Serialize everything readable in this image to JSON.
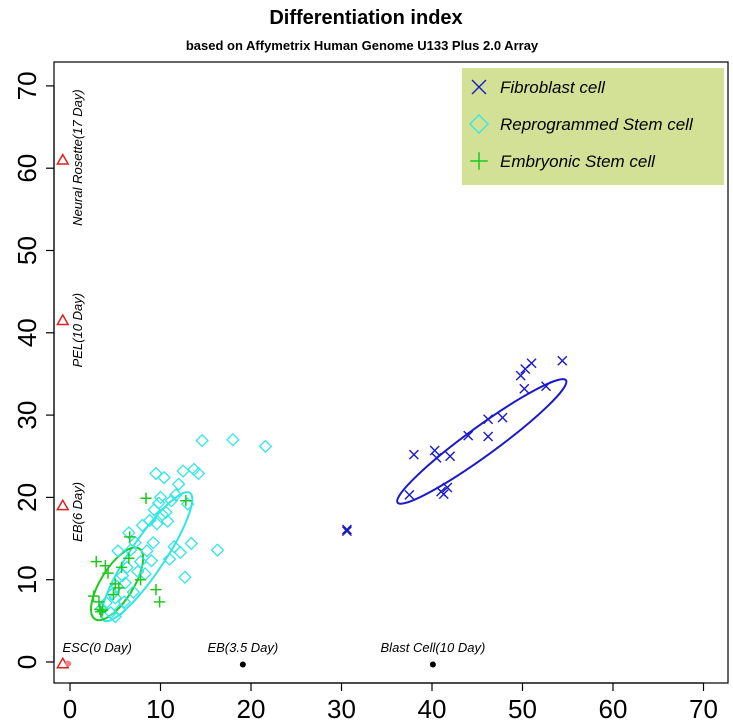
{
  "chart_data": {
    "type": "scatter",
    "title": "Differentiation index",
    "subtitle": "based on Affymetrix Human Genome U133 Plus 2.0 Array",
    "xlabel": "",
    "ylabel": "",
    "xlim": [
      -2,
      70
    ],
    "ylim": [
      -1,
      72
    ],
    "xticks": [
      0,
      10,
      20,
      30,
      40,
      50,
      60,
      70
    ],
    "yticks": [
      0,
      10,
      20,
      30,
      40,
      50,
      60,
      70
    ],
    "legend_position": "top-right",
    "series": [
      {
        "name": "Fibroblast cell",
        "marker": "x",
        "color": "#1a1ac8",
        "points": [
          [
            37.5,
            20.3
          ],
          [
            38,
            25.2
          ],
          [
            40.3,
            25.7
          ],
          [
            40.5,
            24.8
          ],
          [
            41,
            20.7
          ],
          [
            41.3,
            20.4
          ],
          [
            41.7,
            21.2
          ],
          [
            42,
            25
          ],
          [
            44,
            27.5
          ],
          [
            46.2,
            29.5
          ],
          [
            46.2,
            27.4
          ],
          [
            47.8,
            29.7
          ],
          [
            49.8,
            34.8
          ],
          [
            50.2,
            33.2
          ],
          [
            50.3,
            35.6
          ],
          [
            51,
            36.3
          ],
          [
            52.6,
            33.5
          ],
          [
            54.4,
            36.6
          ],
          [
            30.6,
            15.9
          ],
          [
            30.6,
            16.1
          ]
        ],
        "ellipse": {
          "cx": 45.5,
          "cy": 26.8,
          "rx": 11.5,
          "ry": 1.6,
          "angle_deg": 36
        }
      },
      {
        "name": "Reprogrammed Stem cell",
        "marker": "diamond",
        "color": "#33e6e6",
        "points": [
          [
            3.5,
            6.5
          ],
          [
            4,
            7.2
          ],
          [
            4.5,
            6
          ],
          [
            5,
            5.5
          ],
          [
            5,
            7.8
          ],
          [
            5.2,
            9.2
          ],
          [
            5.5,
            6.3
          ],
          [
            5.8,
            10.5
          ],
          [
            6,
            7.3
          ],
          [
            6.3,
            11.5
          ],
          [
            6.7,
            13.6
          ],
          [
            7,
            8.5
          ],
          [
            7.2,
            14.5
          ],
          [
            7.5,
            11
          ],
          [
            8,
            16.6
          ],
          [
            8.3,
            10.7
          ],
          [
            8.5,
            13.5
          ],
          [
            8.8,
            17.2
          ],
          [
            9,
            12.3
          ],
          [
            9.3,
            18.5
          ],
          [
            9.5,
            22.9
          ],
          [
            9.6,
            16.8
          ],
          [
            9.8,
            19.3
          ],
          [
            10,
            20
          ],
          [
            10.2,
            17.9
          ],
          [
            10.4,
            22.4
          ],
          [
            10.6,
            18.2
          ],
          [
            11,
            12.5
          ],
          [
            11.2,
            19.6
          ],
          [
            11.5,
            14
          ],
          [
            11.7,
            20.3
          ],
          [
            12,
            21.6
          ],
          [
            12.2,
            13.3
          ],
          [
            12.5,
            23.2
          ],
          [
            12.7,
            10.3
          ],
          [
            13,
            19.2
          ],
          [
            13.4,
            14.4
          ],
          [
            13.7,
            23.4
          ],
          [
            14.2,
            22.9
          ],
          [
            14.6,
            26.9
          ],
          [
            16.3,
            13.6
          ],
          [
            18,
            27
          ],
          [
            21.6,
            26.2
          ],
          [
            5.3,
            13.5
          ],
          [
            6.5,
            15.7
          ],
          [
            7.8,
            12.2
          ],
          [
            10.8,
            17.1
          ],
          [
            9.2,
            14.5
          ],
          [
            4.7,
            8.3
          ],
          [
            6.1,
            9.6
          ]
        ],
        "ellipse": {
          "cx": 8.5,
          "cy": 12.8,
          "rx": 8.5,
          "ry": 1.9,
          "angle_deg": 56
        }
      },
      {
        "name": "Embryonic Stem cell",
        "marker": "plus",
        "color": "#1ec81e",
        "points": [
          [
            2.6,
            8
          ],
          [
            2.9,
            12.2
          ],
          [
            3.2,
            7.3
          ],
          [
            3.4,
            6.1
          ],
          [
            3.6,
            6.3
          ],
          [
            3.9,
            11.7
          ],
          [
            4.2,
            10.8
          ],
          [
            4.8,
            8.2
          ],
          [
            5,
            9.5
          ],
          [
            5.4,
            9
          ],
          [
            5.7,
            11.5
          ],
          [
            6.5,
            12.6
          ],
          [
            6.6,
            15.2
          ],
          [
            7.8,
            10
          ],
          [
            8.4,
            19.9
          ],
          [
            9.5,
            8.8
          ],
          [
            9.9,
            7.3
          ],
          [
            12.8,
            19.6
          ],
          [
            3.3,
            6.4
          ]
        ],
        "ellipse": {
          "cx": 5.2,
          "cy": 9.5,
          "rx": 4.6,
          "ry": 1.8,
          "angle_deg": 58
        }
      }
    ],
    "reference_points": [
      {
        "label": "Neural Rosette(17 Day)",
        "x": -0.8,
        "y": 61,
        "marker": "triangle",
        "color": "#e02020",
        "label_x": 1.3,
        "label_y": 53,
        "rotate": true
      },
      {
        "label": "PEL(10 Day)",
        "x": -0.8,
        "y": 41.5,
        "marker": "triangle",
        "color": "#e02020",
        "label_x": 1.3,
        "label_y": 35.8,
        "rotate": true
      },
      {
        "label": "EB(6 Day)",
        "x": -0.8,
        "y": 19,
        "marker": "triangle",
        "color": "#e02020",
        "label_x": 1.3,
        "label_y": 14.6,
        "rotate": true
      },
      {
        "label": "ESC(0 Day)",
        "x": -0.8,
        "y": -0.2,
        "marker": "triangle",
        "color": "#e02020",
        "label_x": 3,
        "label_y": 1.2,
        "rotate": false
      },
      {
        "label": "EB(3.5 Day)",
        "x": 19.1,
        "y": -0.3,
        "marker": "dot",
        "color": "#000000",
        "label_x": 19.1,
        "label_y": 1.2,
        "rotate": false
      },
      {
        "label": "Blast Cell(10 Day)",
        "x": 40.1,
        "y": -0.3,
        "marker": "dot",
        "color": "#000000",
        "label_x": 40.1,
        "label_y": 1.2,
        "rotate": false
      }
    ]
  },
  "legend": {
    "background": "#d3e196",
    "items": [
      {
        "label": "Fibroblast cell",
        "marker": "x",
        "color": "#1a1ac8"
      },
      {
        "label": "Reprogrammed Stem cell",
        "marker": "diamond",
        "color": "#33e6e6"
      },
      {
        "label": "Embryonic Stem cell",
        "marker": "plus",
        "color": "#1ec81e"
      }
    ]
  }
}
